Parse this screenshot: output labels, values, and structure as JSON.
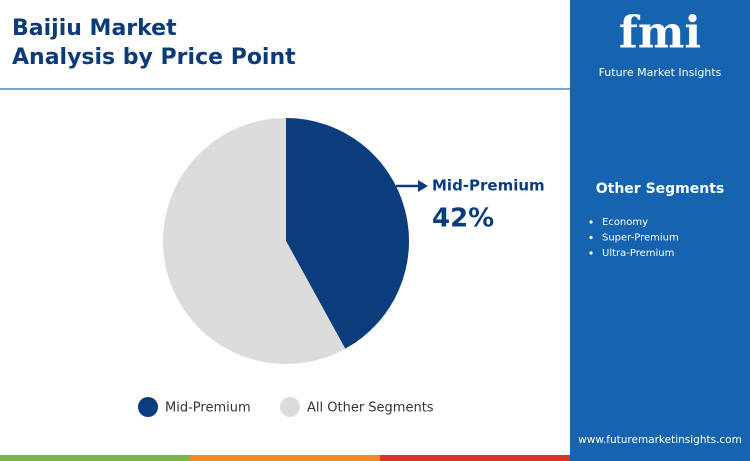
{
  "chart_data": {
    "type": "pie",
    "title": "Baijiu Market Analysis by Price Point",
    "categories": [
      "Mid-Premium",
      "All Other Segments"
    ],
    "values": [
      42,
      58
    ],
    "value_labels": [
      "42%",
      null
    ],
    "colors": [
      "#0b3d7c",
      "#dcdcdc"
    ]
  },
  "sidebar": {
    "brand": "fmi",
    "tagline": "Future Market Insights",
    "title": "Other Segments",
    "items": [
      "Economy",
      "Super-Premium",
      "Ultra-Premium"
    ],
    "url": "www.futuremarketinsights.com"
  }
}
